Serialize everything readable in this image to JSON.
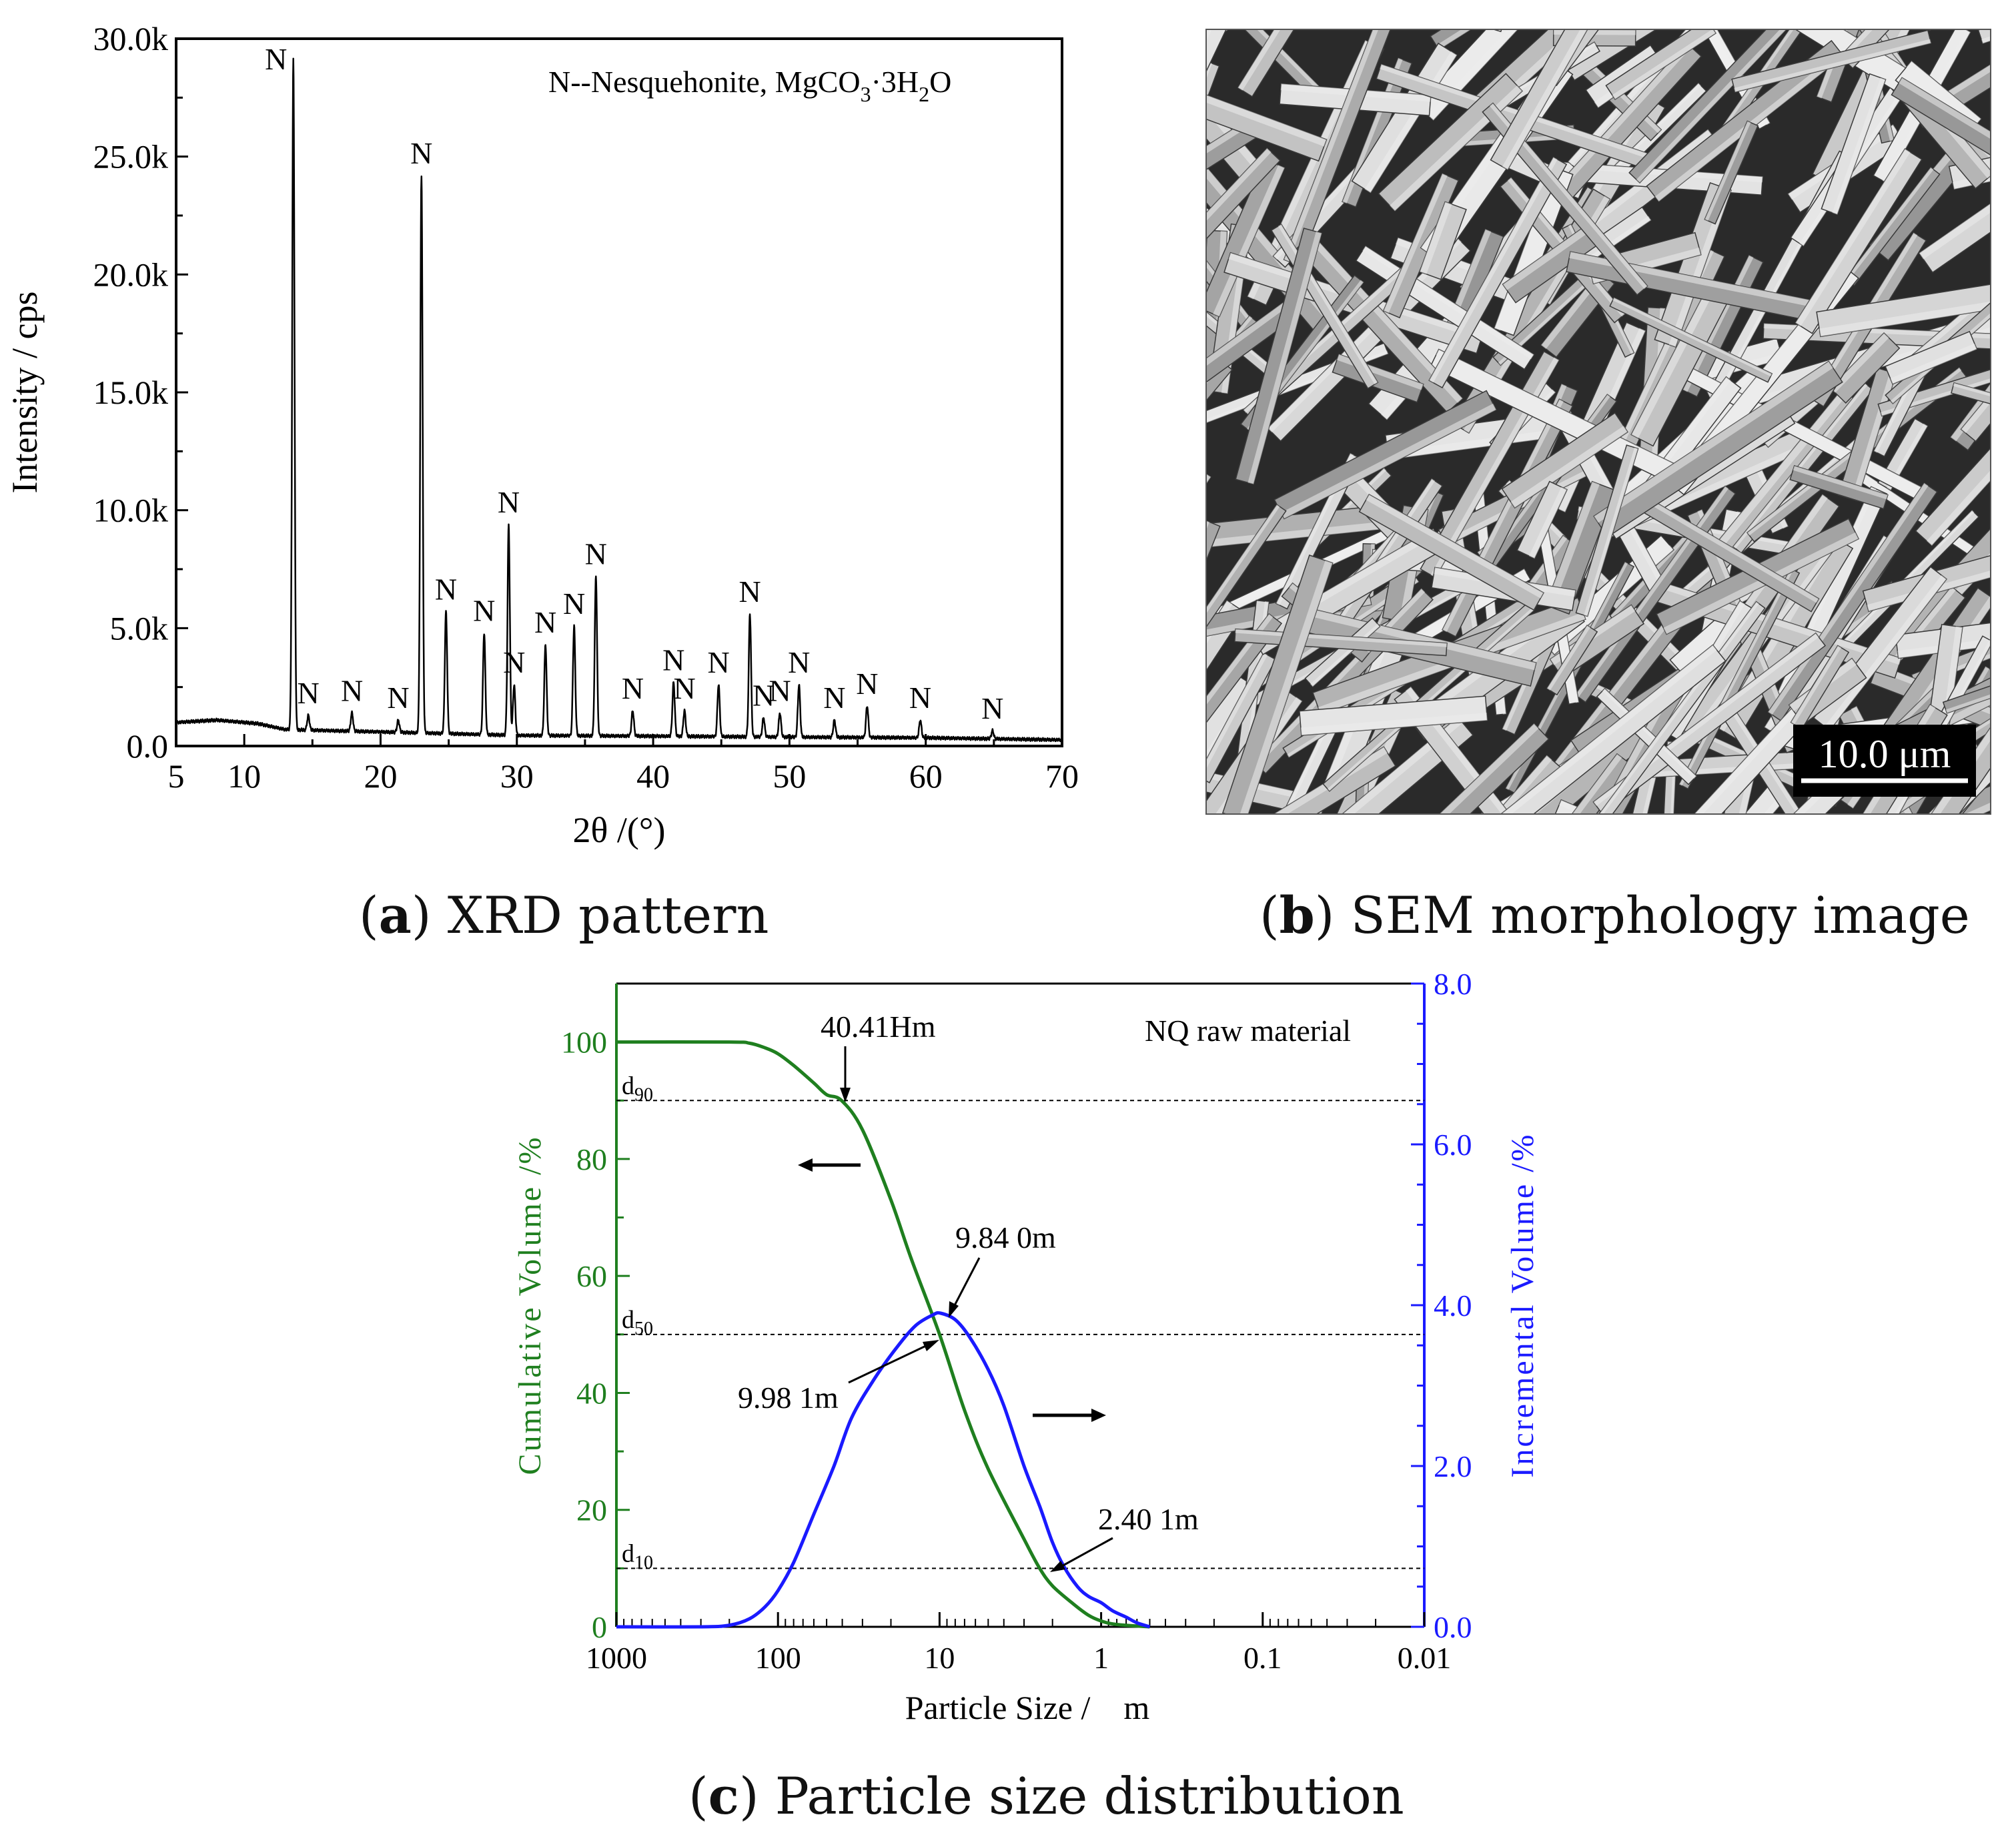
{
  "colors": {
    "axis": "#000000",
    "cumulative": "#1f7f1f",
    "incremental": "#1a1aff",
    "sem_bg": "#2a2a2a"
  },
  "panel_a": {
    "caption_letter": "a",
    "caption_text": " XRD pattern",
    "legend": "N--Nesquehonite, MgCO3·3H2O",
    "legend_parts": {
      "prefix": "N--Nesquehonite, MgCO",
      "sub1": "3",
      "mid": "·3H",
      "sub2": "2",
      "suffix": "O"
    }
  },
  "panel_b": {
    "caption_letter": "b",
    "caption_text": " SEM morphology image",
    "scale_bar": "10.0 μm"
  },
  "panel_c": {
    "caption_letter": "c",
    "caption_text": " Particle size distribution",
    "legend": "NQ raw material",
    "d_labels": [
      {
        "main": "d",
        "sub": "90",
        "y": 90
      },
      {
        "main": "d",
        "sub": "50",
        "y": 50
      },
      {
        "main": "d",
        "sub": "10",
        "y": 10
      }
    ],
    "annotations": [
      "40.41Hm",
      "9.84 0m",
      "9.98 1m",
      "2.40 1m"
    ]
  },
  "chart_data": [
    {
      "type": "line",
      "xlabel": "2θ /(°)",
      "ylabel": "Intensity / cps",
      "xlim": [
        5,
        70
      ],
      "ylim": [
        0,
        30000
      ],
      "x_ticks": [
        5,
        10,
        20,
        30,
        40,
        50,
        60,
        70
      ],
      "y_ticks": [
        0,
        5000,
        10000,
        15000,
        20000,
        25000,
        30000
      ],
      "y_tick_labels": [
        "0.0",
        "5.0k",
        "10.0k",
        "15.0k",
        "20.0k",
        "25.0k",
        "30.0k"
      ],
      "grid": false,
      "baseline": [
        [
          5,
          1000
        ],
        [
          8,
          1100
        ],
        [
          11,
          950
        ],
        [
          13,
          700
        ],
        [
          20,
          600
        ],
        [
          30,
          450
        ],
        [
          40,
          420
        ],
        [
          50,
          380
        ],
        [
          60,
          350
        ],
        [
          70,
          260
        ]
      ],
      "peaks": [
        {
          "x": 13.6,
          "y": 29200,
          "label": "N"
        },
        {
          "x": 14.7,
          "y": 1300,
          "label": "N"
        },
        {
          "x": 17.9,
          "y": 1400,
          "label": "N"
        },
        {
          "x": 21.3,
          "y": 1100,
          "label": "N"
        },
        {
          "x": 23.0,
          "y": 24200,
          "label": "N"
        },
        {
          "x": 24.8,
          "y": 5700,
          "label": "N"
        },
        {
          "x": 27.6,
          "y": 4800,
          "label": "N"
        },
        {
          "x": 29.4,
          "y": 9400,
          "label": "N"
        },
        {
          "x": 29.8,
          "y": 2600,
          "label": "N"
        },
        {
          "x": 32.1,
          "y": 4300,
          "label": "N"
        },
        {
          "x": 34.2,
          "y": 5100,
          "label": "N"
        },
        {
          "x": 35.8,
          "y": 7200,
          "label": "N"
        },
        {
          "x": 38.5,
          "y": 1500,
          "label": "N"
        },
        {
          "x": 41.5,
          "y": 2700,
          "label": "N"
        },
        {
          "x": 42.3,
          "y": 1500,
          "label": "N"
        },
        {
          "x": 44.8,
          "y": 2600,
          "label": "N"
        },
        {
          "x": 47.1,
          "y": 5600,
          "label": "N"
        },
        {
          "x": 48.1,
          "y": 1200,
          "label": "N"
        },
        {
          "x": 49.3,
          "y": 1400,
          "label": "N"
        },
        {
          "x": 50.7,
          "y": 2600,
          "label": "N"
        },
        {
          "x": 53.3,
          "y": 1100,
          "label": "N"
        },
        {
          "x": 55.7,
          "y": 1700,
          "label": "N"
        },
        {
          "x": 59.6,
          "y": 1100,
          "label": "N"
        },
        {
          "x": 64.9,
          "y": 650,
          "label": "N"
        }
      ]
    },
    {
      "type": "line",
      "xlabel": "Particle Size /    m",
      "ylabel_left": "Cumulative  Volume  /%",
      "ylabel_right": "Incremental  Volume  /%",
      "x_scale": "log",
      "x_reversed": true,
      "xlim": [
        1000,
        0.01
      ],
      "x_ticks": [
        1000,
        100,
        10,
        1,
        0.1,
        0.01
      ],
      "x_tick_labels": [
        "1000",
        "100",
        "10",
        "1",
        "0.1",
        "0.01"
      ],
      "ylim_left": [
        0,
        110
      ],
      "y_ticks_left": [
        0,
        20,
        40,
        60,
        80,
        100
      ],
      "ylim_right": [
        0,
        8
      ],
      "y_ticks_right": [
        0,
        2,
        4,
        6,
        8
      ],
      "y_tick_labels_right": [
        "0.0",
        "2.0",
        "4.0",
        "6.0",
        "8.0"
      ],
      "reference_lines": [
        90,
        50,
        10
      ],
      "series": [
        {
          "axis": "left",
          "x": [
            1000,
            200,
            150,
            120,
            100,
            80,
            60,
            50,
            40.41,
            30,
            20,
            15,
            10,
            7,
            5,
            3,
            2.4,
            2,
            1.5,
            1.2,
            1,
            0.8,
            0.5
          ],
          "values": [
            100,
            100,
            99.8,
            99,
            98,
            96,
            93,
            91,
            90,
            85,
            73,
            63,
            50,
            37,
            27,
            15,
            10,
            7,
            4,
            2,
            1,
            0.4,
            0
          ]
        },
        {
          "axis": "right",
          "x": [
            1000,
            300,
            200,
            150,
            120,
            100,
            80,
            60,
            45,
            35,
            25,
            18,
            14,
            11,
            9.84,
            8,
            6.5,
            5,
            4,
            3,
            2.4,
            2,
            1.7,
            1.4,
            1.2,
            1,
            0.85,
            0.7,
            0.6,
            0.5
          ],
          "values": [
            0,
            0,
            0.02,
            0.1,
            0.25,
            0.45,
            0.8,
            1.4,
            2.0,
            2.6,
            3.1,
            3.5,
            3.75,
            3.88,
            3.9,
            3.82,
            3.6,
            3.2,
            2.75,
            2.0,
            1.5,
            1.05,
            0.75,
            0.5,
            0.38,
            0.3,
            0.2,
            0.12,
            0.05,
            0
          ]
        }
      ]
    }
  ]
}
